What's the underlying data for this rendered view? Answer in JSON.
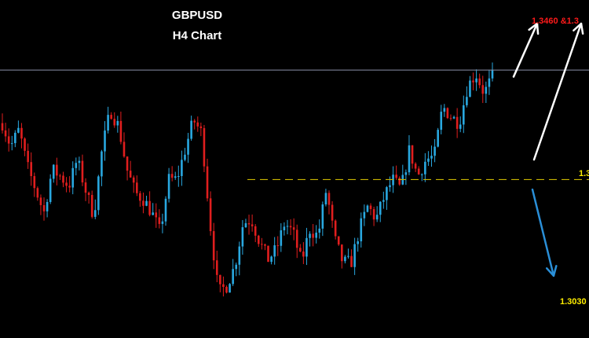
{
  "chart_data": {
    "type": "candlestick",
    "title": "GBPUSD",
    "subtitle": "H4 Chart",
    "colors": {
      "background": "#000000",
      "bull": "#29a8e0",
      "bear": "#e01e1e",
      "resistance_line": "#8a8fa8",
      "support_line": "#c8b400",
      "up_arrow": "#ffffff",
      "down_arrow": "#2a8fd8",
      "target_up_label": "#ff1a1a",
      "target_mid_label": "#ffee00",
      "target_down_label": "#ffee00"
    },
    "annotations": {
      "target_up": "1.3460 &1.3",
      "target_mid": "1.3",
      "target_down": "1.3030"
    },
    "ylim": [
      1.3,
      1.345
    ],
    "levels": {
      "resistance": 1.338,
      "support": 1.3215,
      "down_arrow_start": 1.32,
      "down_arrow_end": 1.307,
      "up_arrow1_start": 1.337,
      "up_arrow1_end": 1.345,
      "up_arrow2_start": 1.3245,
      "up_arrow2_end": 1.345
    },
    "waypoints": [
      1.33,
      1.3265,
      1.329,
      1.3235,
      1.32,
      1.3165,
      1.323,
      1.322,
      1.3205,
      1.3245,
      1.32,
      1.316,
      1.326,
      1.332,
      1.3295,
      1.323,
      1.3195,
      1.3185,
      1.3165,
      1.3135,
      1.3215,
      1.3215,
      1.326,
      1.3305,
      1.3285,
      1.315,
      1.3045,
      1.3055,
      1.3085,
      1.315,
      1.3155,
      1.312,
      1.3095,
      1.311,
      1.315,
      1.3135,
      1.309,
      1.314,
      1.313,
      1.32,
      1.3125,
      1.309,
      1.309,
      1.314,
      1.3175,
      1.3155,
      1.319,
      1.3215,
      1.32,
      1.326,
      1.322,
      1.3245,
      1.325,
      1.3325,
      1.331,
      1.33,
      1.3355,
      1.3375,
      1.3345,
      1.337
    ]
  }
}
